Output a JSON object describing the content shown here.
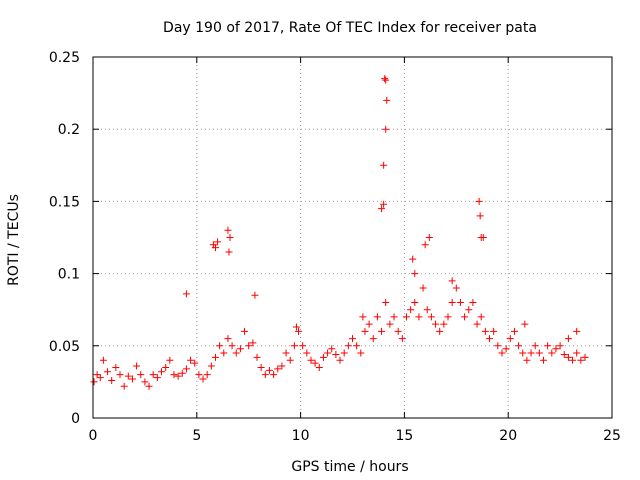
{
  "chart_data": {
    "type": "scatter",
    "title": "Day 190 of 2017, Rate Of TEC Index for receiver pata",
    "xlabel": "GPS time / hours",
    "ylabel": "ROTI / TECUs",
    "xlim": [
      0,
      25
    ],
    "ylim": [
      0,
      0.25
    ],
    "xticks": [
      0,
      5,
      10,
      15,
      20,
      25
    ],
    "xtick_labels": [
      "0",
      "5",
      "10",
      "15",
      "20",
      "25"
    ],
    "yticks": [
      0,
      0.05,
      0.1,
      0.15,
      0.2,
      0.25
    ],
    "ytick_labels": [
      "0",
      "0.05",
      "0.1",
      "0.15",
      "0.2",
      "0.25"
    ],
    "grid": true,
    "marker": "+",
    "color": "#ff0000",
    "series": [
      {
        "x": [
          0.05,
          0.2,
          0.35,
          0.5,
          0.7,
          0.9,
          1.1,
          1.3,
          1.5,
          1.7,
          1.9,
          2.1,
          2.3,
          2.5,
          2.7,
          2.9,
          3.1,
          3.3,
          3.5,
          3.7,
          3.9,
          4.1,
          4.3,
          4.5,
          4.7,
          4.9,
          5.1,
          5.3,
          5.5,
          5.7,
          5.9,
          6.1,
          6.3,
          6.5,
          6.7,
          6.9,
          7.1,
          7.3,
          7.5,
          7.7,
          7.9,
          8.1,
          8.3,
          8.5,
          8.7,
          8.9,
          9.1,
          9.3,
          9.5,
          9.7,
          9.9,
          10.1,
          10.3,
          10.5,
          10.7,
          10.9,
          11.1,
          11.3,
          11.5,
          11.7,
          11.9,
          12.1,
          12.3,
          12.5,
          12.7,
          12.9,
          13.1,
          13.3,
          13.5,
          13.7,
          13.9,
          14.1,
          14.3,
          14.5,
          14.7,
          14.9,
          15.1,
          15.3,
          15.5,
          15.7,
          15.9,
          16.1,
          16.3,
          16.5,
          16.7,
          16.9,
          17.1,
          17.3,
          17.5,
          17.7,
          17.9,
          18.1,
          18.3,
          18.5,
          18.7,
          18.9,
          19.1,
          19.3,
          19.5,
          19.7,
          19.9,
          20.1,
          20.3,
          20.5,
          20.7,
          20.9,
          21.1,
          21.3,
          21.5,
          21.7,
          21.9,
          22.1,
          22.3,
          22.5,
          22.7,
          22.9,
          23.1,
          23.3,
          23.5,
          23.7,
          4.5,
          5.8,
          5.9,
          6.0,
          6.5,
          6.6,
          6.55,
          7.8,
          9.8,
          13.0,
          13.9,
          14.0,
          14.05,
          14.1,
          14.15,
          14.0,
          14.1,
          15.4,
          15.5,
          16.0,
          16.2,
          17.3,
          18.6,
          18.65,
          18.7,
          18.8,
          20.8,
          22.9,
          23.3
        ],
        "y": [
          0.025,
          0.03,
          0.028,
          0.04,
          0.032,
          0.026,
          0.035,
          0.03,
          0.022,
          0.029,
          0.027,
          0.036,
          0.03,
          0.025,
          0.022,
          0.03,
          0.028,
          0.032,
          0.035,
          0.04,
          0.03,
          0.029,
          0.031,
          0.034,
          0.04,
          0.038,
          0.03,
          0.027,
          0.03,
          0.036,
          0.042,
          0.05,
          0.045,
          0.055,
          0.05,
          0.045,
          0.048,
          0.06,
          0.05,
          0.052,
          0.042,
          0.035,
          0.03,
          0.033,
          0.03,
          0.034,
          0.036,
          0.045,
          0.04,
          0.05,
          0.06,
          0.05,
          0.045,
          0.04,
          0.038,
          0.035,
          0.042,
          0.045,
          0.048,
          0.044,
          0.04,
          0.045,
          0.05,
          0.055,
          0.05,
          0.045,
          0.06,
          0.065,
          0.055,
          0.07,
          0.06,
          0.08,
          0.065,
          0.07,
          0.06,
          0.055,
          0.07,
          0.075,
          0.08,
          0.07,
          0.09,
          0.075,
          0.07,
          0.065,
          0.06,
          0.065,
          0.07,
          0.08,
          0.09,
          0.08,
          0.07,
          0.075,
          0.08,
          0.065,
          0.07,
          0.06,
          0.055,
          0.06,
          0.05,
          0.045,
          0.048,
          0.055,
          0.06,
          0.05,
          0.045,
          0.04,
          0.045,
          0.05,
          0.045,
          0.04,
          0.05,
          0.045,
          0.048,
          0.05,
          0.044,
          0.042,
          0.04,
          0.045,
          0.04,
          0.042,
          0.086,
          0.12,
          0.118,
          0.122,
          0.13,
          0.125,
          0.115,
          0.085,
          0.063,
          0.07,
          0.145,
          0.175,
          0.235,
          0.234,
          0.22,
          0.148,
          0.2,
          0.11,
          0.1,
          0.12,
          0.125,
          0.095,
          0.15,
          0.14,
          0.125,
          0.125,
          0.065,
          0.055,
          0.06
        ]
      }
    ]
  }
}
